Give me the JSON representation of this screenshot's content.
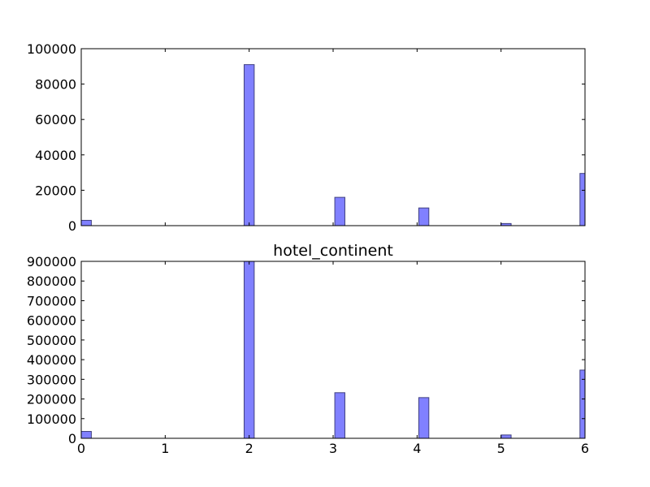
{
  "chart_data": [
    {
      "type": "bar",
      "title": "",
      "xlabel": "",
      "ylabel": "",
      "bin_width": 0.12,
      "x": [
        0,
        1.94,
        3.02,
        4.02,
        5.0,
        5.94
      ],
      "values": [
        3000,
        91000,
        16000,
        10000,
        1200,
        29500
      ],
      "xlim": [
        0,
        6
      ],
      "ylim": [
        0,
        100000
      ],
      "yticks": [
        "0",
        "20000",
        "40000",
        "60000",
        "80000",
        "100000"
      ],
      "ytick_values": [
        0,
        20000,
        40000,
        60000,
        80000,
        100000
      ],
      "xticks": [],
      "xtick_values": [
        0,
        1,
        2,
        3,
        4,
        5,
        6
      ],
      "bar_color": "#8080ff",
      "edge_color": "#404080",
      "grid": false
    },
    {
      "type": "bar",
      "title": "hotel_continent",
      "xlabel": "",
      "ylabel": "",
      "bin_width": 0.12,
      "x": [
        0,
        1.94,
        3.02,
        4.02,
        5.0,
        5.94
      ],
      "values": [
        35000,
        900000,
        232000,
        207000,
        17000,
        347000
      ],
      "xlim": [
        0,
        6
      ],
      "ylim": [
        0,
        900000
      ],
      "yticks": [
        "0",
        "100000",
        "200000",
        "300000",
        "400000",
        "500000",
        "600000",
        "700000",
        "800000",
        "900000"
      ],
      "ytick_values": [
        0,
        100000,
        200000,
        300000,
        400000,
        500000,
        600000,
        700000,
        800000,
        900000
      ],
      "xticks": [
        "0",
        "1",
        "2",
        "3",
        "4",
        "5",
        "6"
      ],
      "xtick_values": [
        0,
        1,
        2,
        3,
        4,
        5,
        6
      ],
      "bar_color": "#8080ff",
      "edge_color": "#404080",
      "grid": false
    }
  ]
}
